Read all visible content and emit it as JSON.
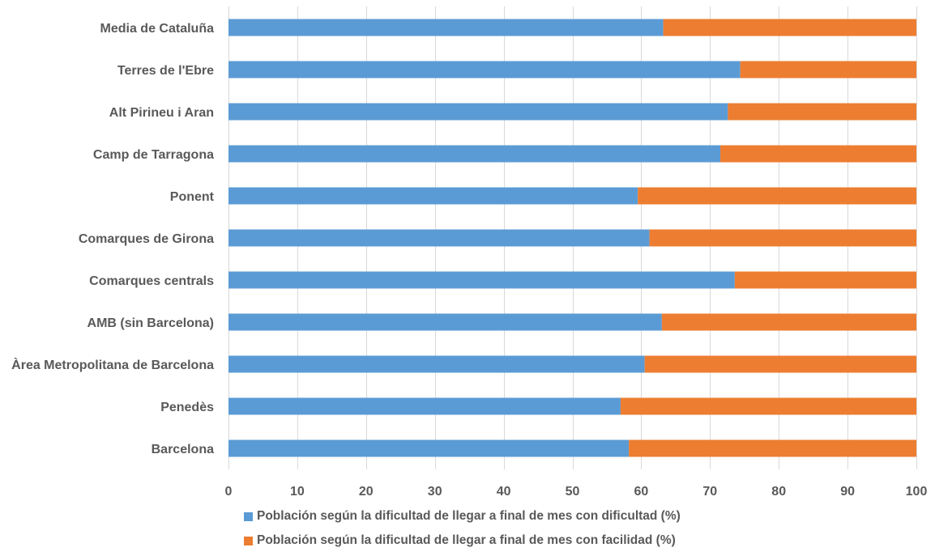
{
  "chart_data": {
    "type": "bar",
    "orientation": "horizontal",
    "stacked": true,
    "title": "",
    "xlabel": "",
    "ylabel": "",
    "xlim": [
      0,
      100
    ],
    "xticks": [
      0,
      10,
      20,
      30,
      40,
      50,
      60,
      70,
      80,
      90,
      100
    ],
    "grid": true,
    "legend_position": "bottom",
    "categories": [
      "Media de Cataluña",
      "Terres de l'Ebre",
      "Alt Pirineu i Aran",
      "Camp de Tarragona",
      "Ponent",
      "Comarques de Girona",
      "Comarques centrals",
      "AMB (sin Barcelona)",
      "Àrea Metropolitana de Barcelona",
      "Penedès",
      "Barcelona"
    ],
    "series": [
      {
        "name": "Población según la dificultad de llegar a final de mes con dificultad (%)",
        "color": "#5B9BD5",
        "values": [
          63.2,
          74.4,
          72.6,
          71.5,
          59.5,
          61.2,
          73.6,
          63.0,
          60.5,
          57.0,
          58.2
        ]
      },
      {
        "name": "Población según la dificultad de llegar a final de mes con facilidad (%)",
        "color": "#ED7D31",
        "values": [
          36.8,
          25.6,
          27.4,
          28.5,
          40.5,
          38.8,
          26.4,
          37.0,
          39.5,
          43.0,
          41.8
        ]
      }
    ]
  }
}
